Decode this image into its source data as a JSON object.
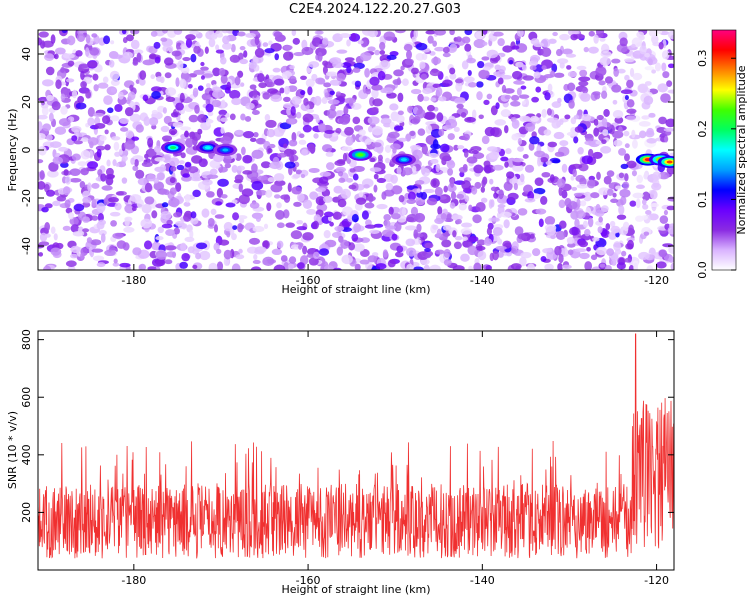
{
  "title": "C2E4.2024.122.20.27.G03",
  "chart_data": [
    {
      "type": "heatmap",
      "title": "C2E4.2024.122.20.27.G03",
      "xlabel": "Height of straight line (km)",
      "ylabel": "Frequency (Hz)",
      "xlim": [
        -191,
        -118
      ],
      "ylim": [
        -50,
        50
      ],
      "x_ticks": [
        -180,
        -160,
        -140,
        -120
      ],
      "y_ticks": [
        -40,
        -20,
        0,
        20,
        40
      ],
      "colorbar": {
        "label": "Normalized spectral amplitude",
        "range": [
          0,
          0.34
        ],
        "ticks": [
          0.0,
          0.1,
          0.2,
          0.3
        ],
        "colormap": [
          "#ffffff",
          "#d9b3ff",
          "#8a2be2",
          "#6a00ff",
          "#0000ff",
          "#00a0ff",
          "#00ffff",
          "#00ff60",
          "#40ff00",
          "#ffff00",
          "#ff8000",
          "#ff0000",
          "#ff0080"
        ]
      },
      "hotspots": [
        {
          "x": -175.5,
          "y": 1,
          "value": 0.2
        },
        {
          "x": -171.5,
          "y": 1,
          "value": 0.17
        },
        {
          "x": -169.5,
          "y": 0,
          "value": 0.15
        },
        {
          "x": -154,
          "y": -2,
          "value": 0.23
        },
        {
          "x": -149,
          "y": -4,
          "value": 0.16
        },
        {
          "x": -121,
          "y": -4,
          "value": 0.32
        },
        {
          "x": -119.5,
          "y": -4,
          "value": 0.28
        },
        {
          "x": -118.5,
          "y": -5,
          "value": 0.3
        }
      ],
      "grid": false
    },
    {
      "type": "line",
      "xlabel": "Height of straight line (km)",
      "ylabel": "SNR (10 * v/v)",
      "xlim": [
        -191,
        -118
      ],
      "ylim": [
        0,
        830
      ],
      "x_ticks": [
        -180,
        -160,
        -140,
        -120
      ],
      "y_ticks": [
        200,
        400,
        600,
        800
      ],
      "series": [
        {
          "color": "#f03030",
          "baseline_range": [
            40,
            300
          ],
          "typical_peak": 450,
          "max_peak": {
            "x": -122.4,
            "y": 820
          },
          "elevated_region": {
            "x_start": -122.8,
            "x_end": -118,
            "level": [
              150,
              600
            ]
          }
        }
      ],
      "grid": false
    }
  ]
}
